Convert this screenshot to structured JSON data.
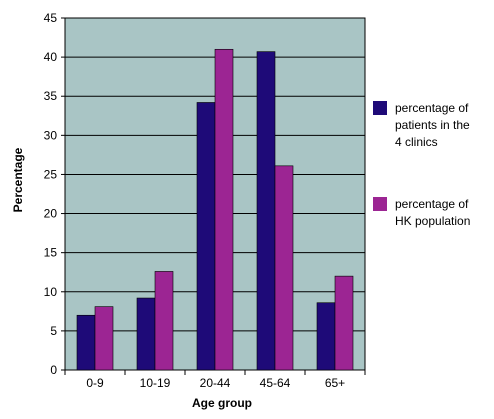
{
  "chart_data": {
    "type": "bar",
    "categories": [
      "0-9",
      "10-19",
      "20-44",
      "45-64",
      "65+"
    ],
    "series": [
      {
        "name_lines": [
          "percentage of",
          "patients in the",
          "4 clinics"
        ],
        "color": "#1e0a78",
        "values": [
          7.0,
          9.2,
          34.2,
          40.7,
          8.6
        ]
      },
      {
        "name_lines": [
          "percentage of",
          "HK population"
        ],
        "color": "#9c2593",
        "values": [
          8.1,
          12.6,
          41.0,
          26.1,
          12.0
        ]
      }
    ],
    "xlabel": "Age group",
    "ylabel": "Percentage",
    "ylim": [
      0,
      45
    ],
    "yticks": [
      0,
      5,
      10,
      15,
      20,
      25,
      30,
      35,
      40,
      45
    ],
    "grid": true,
    "plot_background": "#a9c5c5",
    "legend_position": "right"
  }
}
